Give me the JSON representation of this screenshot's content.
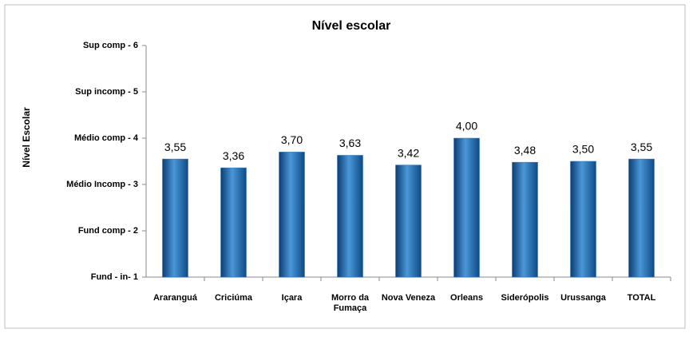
{
  "chart_data": {
    "type": "bar",
    "title": "Nível escolar",
    "y_label": "Nível Escolar",
    "categories": [
      "Araranguá",
      "Criciúma",
      "Içara",
      "Morro da Fumaça",
      "Nova Veneza",
      "Orleans",
      "Siderópolis",
      "Urussanga",
      "TOTAL"
    ],
    "values": [
      3.55,
      3.36,
      3.7,
      3.63,
      3.42,
      4.0,
      3.48,
      3.5,
      3.55
    ],
    "value_labels": [
      "3,55",
      "3,36",
      "3,70",
      "3,63",
      "3,42",
      "4,00",
      "3,48",
      "3,50",
      "3,55"
    ],
    "color": "#2e75b6",
    "ylim": [
      1,
      6
    ],
    "yticks": [
      {
        "value": 1,
        "label": "Fund - in- 1"
      },
      {
        "value": 2,
        "label": "Fund comp - 2"
      },
      {
        "value": 3,
        "label": "Médio Incomp - 3"
      },
      {
        "value": 4,
        "label": "Médio  comp - 4"
      },
      {
        "value": 5,
        "label": "Sup incomp - 5"
      },
      {
        "value": 6,
        "label": "Sup comp - 6"
      }
    ],
    "grid": false
  }
}
